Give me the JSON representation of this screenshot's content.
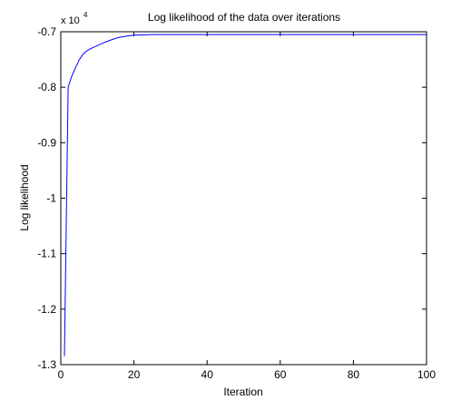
{
  "chart_data": {
    "type": "line",
    "title": "Log likelihood of the data over iterations",
    "xlabel": "Iteration",
    "ylabel": "Log likelihood",
    "y_exponent_label": "x 10",
    "y_exponent_power": "4",
    "xlim": [
      0,
      100
    ],
    "ylim": [
      -1.3,
      -0.7
    ],
    "x_ticks": [
      0,
      20,
      40,
      60,
      80,
      100
    ],
    "y_ticks": [
      -1.3,
      -1.2,
      -1.1,
      -1,
      -0.9,
      -0.8,
      -0.7
    ],
    "x_tick_labels": [
      "0",
      "20",
      "40",
      "60",
      "80",
      "100"
    ],
    "y_tick_labels": [
      "-1.3",
      "-1.2",
      "-1.1",
      "-1",
      "-0.9",
      "-0.8",
      "-0.7"
    ],
    "grid": false,
    "line_color": "#0000ff",
    "series": [
      {
        "x": [
          1,
          2,
          3,
          4,
          5,
          6,
          7,
          8,
          9,
          10,
          12,
          14,
          16,
          18,
          20,
          25,
          30,
          40,
          50,
          60,
          70,
          80,
          90,
          100
        ],
        "y": [
          -1.285,
          -0.8,
          -0.78,
          -0.765,
          -0.751,
          -0.741,
          -0.735,
          -0.731,
          -0.728,
          -0.725,
          -0.719,
          -0.714,
          -0.71,
          -0.708,
          -0.706,
          -0.705,
          -0.705,
          -0.705,
          -0.705,
          -0.705,
          -0.705,
          -0.705,
          -0.705,
          -0.705
        ]
      }
    ]
  }
}
